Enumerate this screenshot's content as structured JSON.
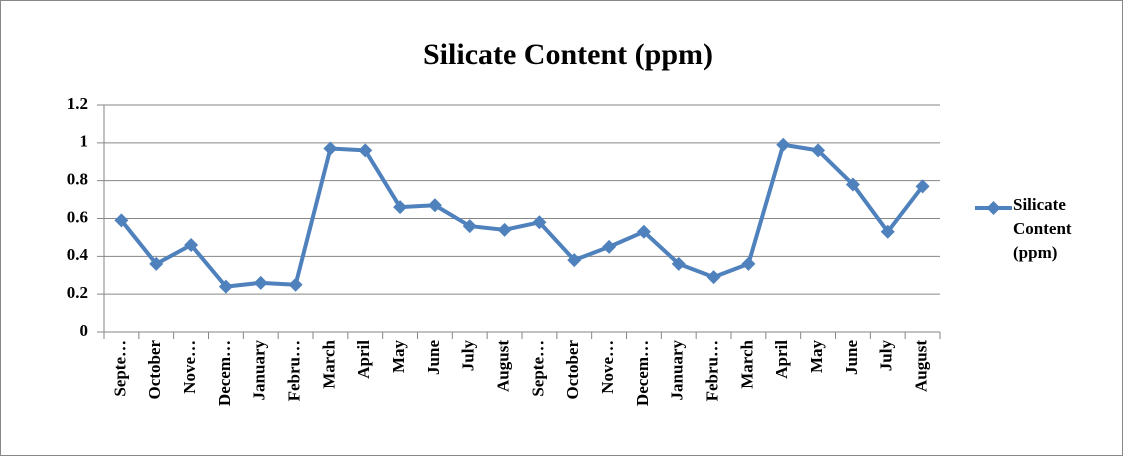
{
  "chart_data": {
    "type": "line",
    "title": "Silicate Content (ppm)",
    "categories": [
      "Septe…",
      "October",
      "Nove…",
      "Decem…",
      "January",
      "Febru…",
      "March",
      "April",
      "May",
      "June",
      "July",
      "August",
      "Septe…",
      "October",
      "Nove…",
      "Decem…",
      "January",
      "Febru…",
      "March",
      "April",
      "May",
      "June",
      "July",
      "August"
    ],
    "series": [
      {
        "name": "Silicate Content (ppm)",
        "color": "#4f81bd",
        "values": [
          0.59,
          0.36,
          0.46,
          0.24,
          0.26,
          0.25,
          0.97,
          0.96,
          0.66,
          0.67,
          0.56,
          0.54,
          0.58,
          0.38,
          0.45,
          0.53,
          0.36,
          0.29,
          0.36,
          0.99,
          0.96,
          0.78,
          0.53,
          0.77
        ]
      }
    ],
    "ylim": [
      0,
      1.2
    ],
    "yticks": [
      0,
      0.2,
      0.4,
      0.6,
      0.8,
      1,
      1.2
    ],
    "grid": true,
    "legend": "right"
  }
}
